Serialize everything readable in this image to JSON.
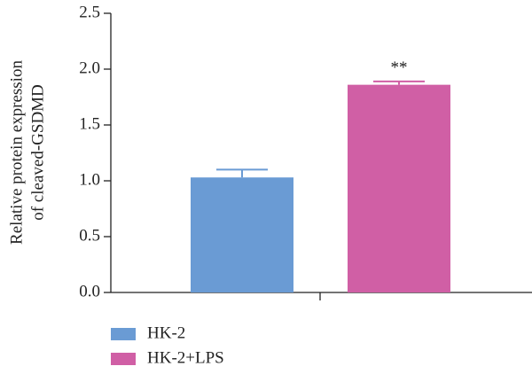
{
  "chart_data": {
    "type": "bar",
    "ylabel": [
      "Relative protein expression",
      "of cleaved-GSDMD"
    ],
    "categories": [
      null
    ],
    "series": [
      {
        "name": "HK-2",
        "color": "#6a9bd4",
        "values": [
          1.03
        ],
        "errors": [
          0.07
        ]
      },
      {
        "name": "HK-2+LPS",
        "color": "#d05fa5",
        "values": [
          1.86
        ],
        "errors": [
          0.03
        ]
      }
    ],
    "annotations": [
      "**"
    ],
    "ylim": [
      0,
      2.5
    ],
    "yticks": [
      {
        "value": 0,
        "label": "0.0"
      },
      0.5,
      {
        "value": 1,
        "label": "1.0"
      },
      1.5,
      {
        "value": 2,
        "label": "2.0"
      },
      2.5
    ],
    "legend": "bottom-left"
  }
}
